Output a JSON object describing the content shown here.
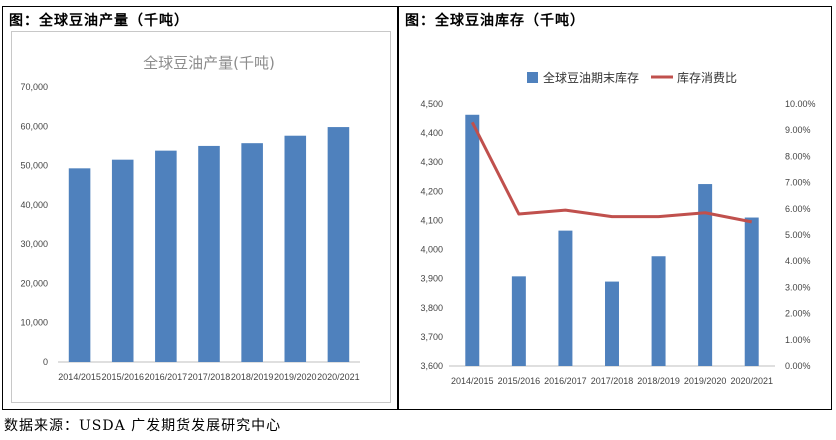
{
  "left_panel": {
    "title": "图：全球豆油产量（千吨）"
  },
  "right_panel": {
    "title": "图：全球豆油库存（千吨）"
  },
  "source": "数据来源：USDA  广发期货发展研究中心",
  "colors": {
    "bar": "#4f81bd",
    "line": "#c0504d"
  },
  "chart_data": [
    {
      "type": "bar",
      "title": "全球豆油产量(千吨)",
      "categories": [
        "2014/2015",
        "2015/2016",
        "2016/2017",
        "2017/2018",
        "2018/2019",
        "2019/2020",
        "2020/2021"
      ],
      "values": [
        49300,
        51500,
        53800,
        55000,
        55700,
        57600,
        59800
      ],
      "ylim": [
        0,
        70000
      ],
      "yticks": [
        "0",
        "10,000",
        "20,000",
        "30,000",
        "40,000",
        "50,000",
        "60,000",
        "70,000"
      ],
      "grid": false
    },
    {
      "type": "bar",
      "categories": [
        "2014/2015",
        "2015/2016",
        "2016/2017",
        "2017/2018",
        "2018/2019",
        "2019/2020",
        "2020/2021"
      ],
      "series": [
        {
          "name": "全球豆油期末库存",
          "type": "bar",
          "axis": "left",
          "values": [
            4463,
            3908,
            4065,
            3890,
            3977,
            4225,
            4110
          ]
        },
        {
          "name": "库存消费比",
          "type": "line",
          "axis": "right",
          "values": [
            9.3,
            5.8,
            5.95,
            5.7,
            5.7,
            5.85,
            5.5
          ]
        }
      ],
      "ylim": [
        3600,
        4500
      ],
      "y2lim": [
        0,
        10
      ],
      "yticks": [
        "3,600",
        "3,700",
        "3,800",
        "3,900",
        "4,000",
        "4,100",
        "4,200",
        "4,300",
        "4,400",
        "4,500"
      ],
      "y2ticks": [
        "0.00%",
        "1.00%",
        "2.00%",
        "3.00%",
        "4.00%",
        "5.00%",
        "6.00%",
        "7.00%",
        "8.00%",
        "9.00%",
        "10.00%"
      ],
      "legend": "top",
      "grid": false
    }
  ]
}
